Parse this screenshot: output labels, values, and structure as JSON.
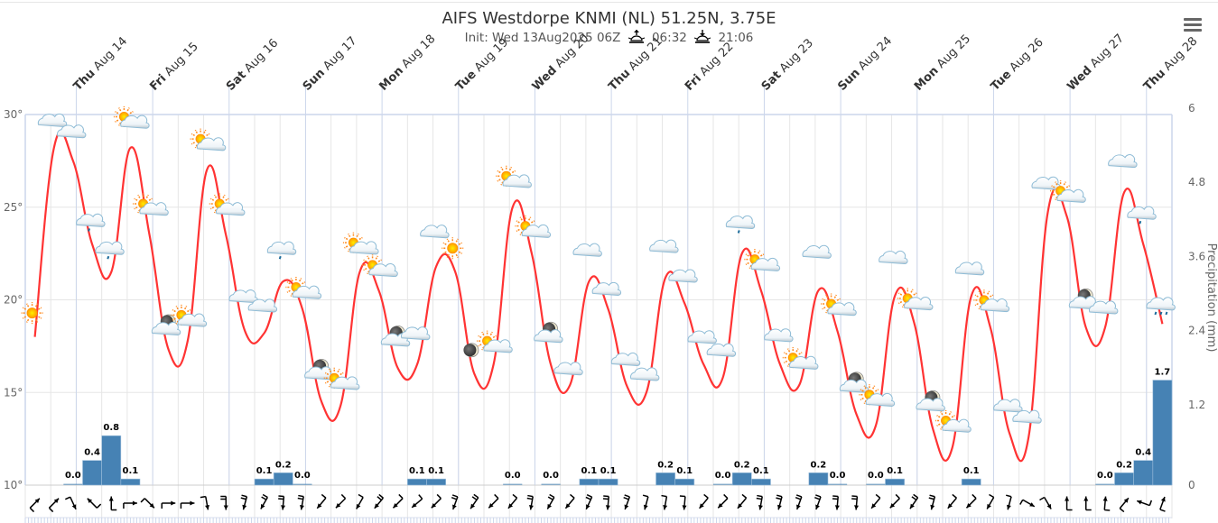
{
  "title": "AIFS Westdorpe KNMI (NL) 51.25N, 3.75E",
  "subtitle": {
    "init": "Init: Wed 13Aug2025 06Z",
    "sunrise_icon": "sunrise-icon",
    "sunrise": "06:32",
    "sunset_icon": "sunset-icon",
    "sunset": "21:06"
  },
  "menu_icon": "hamburger-menu-icon",
  "colors": {
    "temperature_line": "#ff3333",
    "precip_bar": "#4682b4",
    "grid": "#e6e6e6",
    "day_line": "#ccd6eb"
  },
  "chart_data": {
    "type": "line",
    "title": "AIFS Westdorpe KNMI (NL) 51.25N, 3.75E",
    "subtitle": "Init: Wed 13Aug2025 06Z",
    "time_step_hours": 6,
    "start": "2025-08-13 08:00",
    "day_labels": [
      {
        "weekday": "Thu",
        "date": "Aug 14"
      },
      {
        "weekday": "Fri",
        "date": "Aug 15"
      },
      {
        "weekday": "Sat",
        "date": "Aug 16"
      },
      {
        "weekday": "Sun",
        "date": "Aug 17"
      },
      {
        "weekday": "Mon",
        "date": "Aug 18"
      },
      {
        "weekday": "Tue",
        "date": "Aug 19"
      },
      {
        "weekday": "Wed",
        "date": "Aug 20"
      },
      {
        "weekday": "Thu",
        "date": "Aug 21"
      },
      {
        "weekday": "Fri",
        "date": "Aug 22"
      },
      {
        "weekday": "Sat",
        "date": "Aug 23"
      },
      {
        "weekday": "Sun",
        "date": "Aug 24"
      },
      {
        "weekday": "Mon",
        "date": "Aug 25"
      },
      {
        "weekday": "Tue",
        "date": "Aug 26"
      },
      {
        "weekday": "Wed",
        "date": "Aug 27"
      },
      {
        "weekday": "Thu",
        "date": "Aug 28"
      }
    ],
    "y_left": {
      "label": "",
      "ticks": [
        "10°",
        "15°",
        "20°",
        "25°",
        "30°"
      ],
      "range": [
        10,
        30
      ]
    },
    "y_right": {
      "label": "Precipitation (mm)",
      "ticks": [
        "0",
        "1.2",
        "2.4",
        "3.6",
        "4.8",
        "6"
      ],
      "range": [
        0,
        6
      ]
    },
    "grid": true,
    "series": [
      {
        "name": "Temperature (°C)",
        "type": "line",
        "values": [
          18.0,
          28.2,
          27.5,
          23.0,
          21.5,
          28.2,
          23.5,
          17.3,
          17.8,
          27.0,
          23.5,
          18.3,
          18.2,
          21.0,
          19.5,
          14.5,
          14.3,
          21.5,
          20.5,
          16.3,
          16.5,
          21.8,
          21.5,
          16.0,
          16.5,
          25.0,
          22.5,
          16.5,
          15.4,
          21.0,
          19.5,
          15.3,
          15.0,
          21.2,
          19.8,
          16.5,
          15.8,
          22.5,
          20.5,
          16.5,
          15.4,
          20.5,
          18.3,
          13.8,
          13.2,
          20.2,
          18.8,
          13.0,
          12.0,
          20.2,
          18.5,
          12.8,
          12.6,
          24.7,
          24.5,
          18.5,
          18.5,
          25.8,
          23.0,
          18.7
        ]
      },
      {
        "name": "Precipitation (mm)",
        "type": "bar",
        "bars": [
          {
            "slot": 2,
            "value": 0.0
          },
          {
            "slot": 3,
            "value": 0.4
          },
          {
            "slot": 4,
            "value": 0.8
          },
          {
            "slot": 5,
            "value": 0.1
          },
          {
            "slot": 12,
            "value": 0.1
          },
          {
            "slot": 13,
            "value": 0.2
          },
          {
            "slot": 14,
            "value": 0.0
          },
          {
            "slot": 20,
            "value": 0.1
          },
          {
            "slot": 21,
            "value": 0.1
          },
          {
            "slot": 25,
            "value": 0.0
          },
          {
            "slot": 27,
            "value": 0.0
          },
          {
            "slot": 29,
            "value": 0.1
          },
          {
            "slot": 30,
            "value": 0.1
          },
          {
            "slot": 33,
            "value": 0.2
          },
          {
            "slot": 34,
            "value": 0.1
          },
          {
            "slot": 36,
            "value": 0.0
          },
          {
            "slot": 37,
            "value": 0.2
          },
          {
            "slot": 38,
            "value": 0.1
          },
          {
            "slot": 41,
            "value": 0.2
          },
          {
            "slot": 42,
            "value": 0.0
          },
          {
            "slot": 44,
            "value": 0.0
          },
          {
            "slot": 45,
            "value": 0.1
          },
          {
            "slot": 49,
            "value": 0.1
          },
          {
            "slot": 56,
            "value": 0.0
          },
          {
            "slot": 57,
            "value": 0.2
          },
          {
            "slot": 58,
            "value": 0.4
          },
          {
            "slot": 59,
            "value": 1.7
          }
        ]
      }
    ],
    "weather_icons": [
      "clear-day",
      "cloudy",
      "cloudy",
      "light-rain",
      "light-rain",
      "partly-cloudy-day",
      "partly-cloudy-day",
      "partly-cloudy-night",
      "partly-cloudy-day",
      "partly-cloudy-day",
      "partly-cloudy-day",
      "cloudy",
      "cloudy",
      "light-rain",
      "partly-cloudy-day",
      "partly-cloudy-night",
      "partly-cloudy-day",
      "partly-cloudy-day",
      "partly-cloudy-day",
      "partly-cloudy-night",
      "cloudy",
      "cloudy",
      "clear-day",
      "clear-night",
      "partly-cloudy-day",
      "partly-cloudy-day",
      "partly-cloudy-day",
      "partly-cloudy-night",
      "cloudy",
      "cloudy",
      "cloudy",
      "cloudy",
      "cloudy",
      "cloudy",
      "cloudy",
      "cloudy",
      "cloudy",
      "light-rain",
      "partly-cloudy-day",
      "cloudy",
      "partly-cloudy-day",
      "cloudy",
      "partly-cloudy-day",
      "partly-cloudy-night",
      "partly-cloudy-day",
      "cloudy",
      "partly-cloudy-day",
      "partly-cloudy-night",
      "partly-cloudy-day",
      "cloudy",
      "partly-cloudy-day",
      "cloudy",
      "cloudy",
      "cloudy",
      "partly-cloudy-day",
      "partly-cloudy-night",
      "cloudy",
      "cloudy",
      "light-rain",
      "rain"
    ],
    "icon_offsets_c": [
      0.8,
      1.0,
      1.1,
      0.8,
      0.8,
      1.0,
      1.0,
      0.8,
      0.7,
      1.0,
      1.0,
      1.4,
      1.0,
      1.3,
      0.5,
      1.2,
      0.8,
      0.9,
      0.7,
      1.2,
      1.2,
      1.4,
      0.8,
      0.8,
      0.6,
      1.0,
      0.8,
      1.2,
      0.4,
      1.2,
      0.6,
      1.0,
      0.5,
      1.2,
      1.0,
      1.0,
      1.0,
      1.2,
      1.0,
      1.1,
      0.8,
      1.6,
      0.8,
      1.2,
      1.0,
      1.6,
      0.6,
      1.0,
      0.8,
      1.0,
      0.8,
      1.0,
      0.6,
      1.1,
      0.7,
      1.0,
      0.6,
      1.2,
      1.2,
      0.6
    ],
    "wind": {
      "direction_from_deg": [
        225,
        225,
        335,
        135,
        180,
        270,
        315,
        270,
        270,
        350,
        0,
        15,
        30,
        5,
        10,
        40,
        45,
        30,
        40,
        45,
        50,
        45,
        20,
        35,
        45,
        40,
        10,
        30,
        40,
        25,
        5,
        20,
        15,
        10,
        5,
        40,
        45,
        40,
        10,
        15,
        20,
        20,
        5,
        5,
        40,
        45,
        35,
        15,
        40,
        45,
        30,
        15,
        300,
        330,
        180,
        180,
        185,
        220,
        110,
        200
      ],
      "barbs": [
        1,
        1,
        1,
        1,
        1,
        1,
        1,
        1,
        1,
        1,
        2,
        2,
        2,
        2,
        2,
        1,
        1,
        1,
        2,
        1,
        1,
        1,
        2,
        2,
        1,
        1,
        2,
        2,
        1,
        2,
        2,
        2,
        1,
        1,
        1,
        1,
        1,
        1,
        2,
        2,
        2,
        2,
        2,
        2,
        1,
        1,
        2,
        2,
        1,
        1,
        1,
        1,
        1,
        1,
        1,
        1,
        1,
        1,
        1,
        1
      ]
    }
  }
}
